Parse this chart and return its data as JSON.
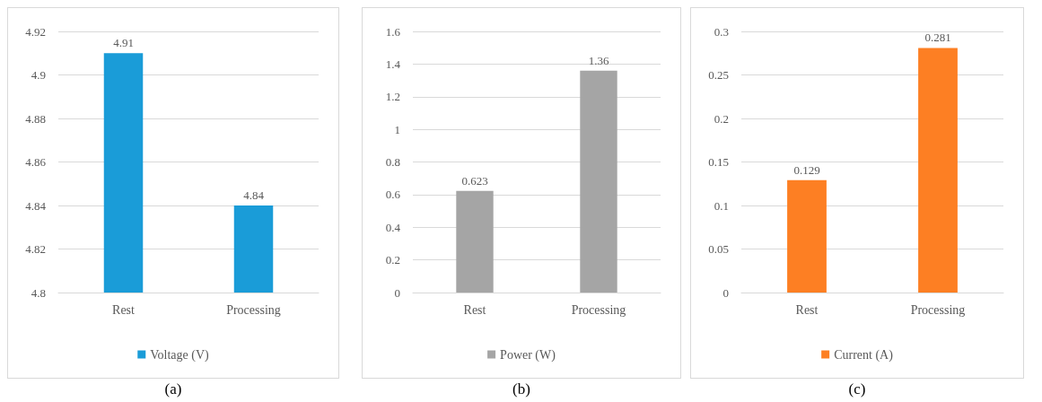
{
  "chart_data": [
    {
      "type": "bar",
      "categories": [
        "Rest",
        "Processing"
      ],
      "series": [
        {
          "name": "Voltage (V)",
          "color": "#1a9cd8",
          "values": [
            4.91,
            4.84
          ]
        }
      ],
      "ylim": [
        4.8,
        4.92
      ],
      "yticks": [
        4.8,
        4.82,
        4.84,
        4.86,
        4.88,
        4.9,
        4.92
      ],
      "grid": "y",
      "legend": "bottom",
      "data_labels": true,
      "annotations": [
        "(a)"
      ]
    },
    {
      "type": "bar",
      "categories": [
        "Rest",
        "Processing"
      ],
      "series": [
        {
          "name": "Power (W)",
          "color": "#a5a5a5",
          "values": [
            0.623,
            1.36
          ]
        }
      ],
      "ylim": [
        0,
        1.6
      ],
      "yticks": [
        0,
        0.2,
        0.4,
        0.6,
        0.8,
        1,
        1.2,
        1.4,
        1.6
      ],
      "grid": "y",
      "legend": "bottom",
      "data_labels": true,
      "annotations": [
        "(b)"
      ]
    },
    {
      "type": "bar",
      "categories": [
        "Rest",
        "Processing"
      ],
      "series": [
        {
          "name": "Current (A)",
          "color": "#fd7f23",
          "values": [
            0.129,
            0.281
          ]
        }
      ],
      "ylim": [
        0,
        0.3
      ],
      "yticks": [
        0,
        0.05,
        0.1,
        0.15,
        0.2,
        0.25,
        0.3
      ],
      "grid": "y",
      "legend": "bottom",
      "data_labels": true,
      "annotations": [
        "(c)"
      ]
    }
  ]
}
